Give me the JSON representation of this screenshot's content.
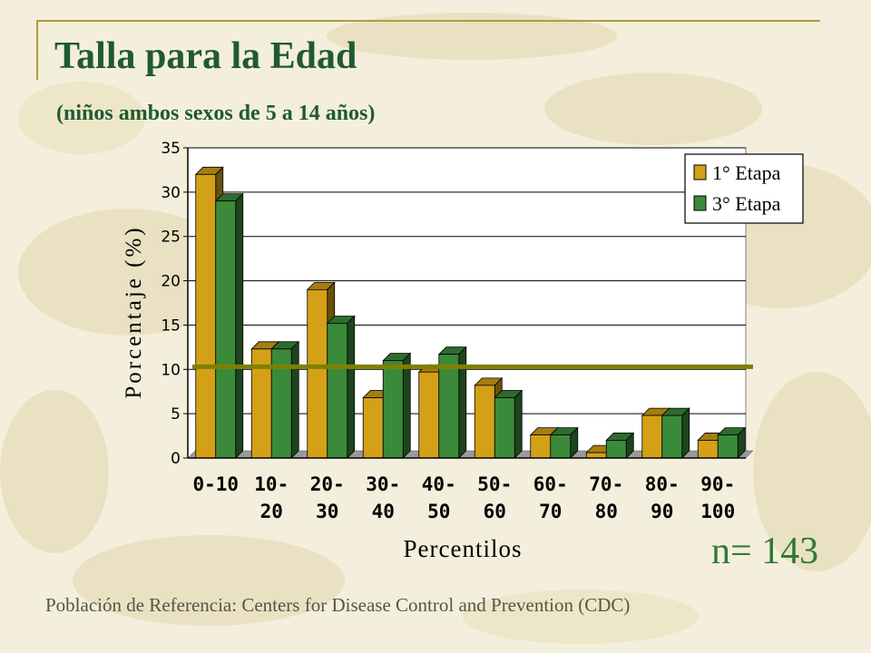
{
  "slide": {
    "title": "Talla para la Edad",
    "subtitle": "(niños ambos sexos de 5 a 14 años)",
    "n_label": "n= 143",
    "footer": "Población de Referencia:  Centers for Disease Control and Prevention (CDC)"
  },
  "chart_data": {
    "type": "bar",
    "categories": [
      [
        "0-10"
      ],
      [
        "10-",
        "20"
      ],
      [
        "20-",
        "30"
      ],
      [
        "30-",
        "40"
      ],
      [
        "40-",
        "50"
      ],
      [
        "50-",
        "60"
      ],
      [
        "60-",
        "70"
      ],
      [
        "70-",
        "80"
      ],
      [
        "80-",
        "90"
      ],
      [
        "90-",
        "100"
      ]
    ],
    "series": [
      {
        "name": "1° Etapa",
        "values": [
          32,
          12.3,
          19,
          6.8,
          9.7,
          8.2,
          2.6,
          0.6,
          4.8,
          2
        ],
        "color": "#d4a017"
      },
      {
        "name": "3° Etapa",
        "values": [
          29,
          12.3,
          15.2,
          11,
          11.7,
          6.8,
          2.6,
          2,
          4.8,
          2.6
        ],
        "color": "#3a8a3a"
      }
    ],
    "reference_line": {
      "value": 10.3,
      "color": "#808000"
    },
    "xlabel": "Percentilos",
    "ylabel": "Porcentaje (%)",
    "ylim": [
      0,
      35
    ],
    "yticks": [
      0,
      5,
      10,
      15,
      20,
      25,
      30,
      35
    ],
    "grid": true,
    "legend_position": "top-right"
  }
}
